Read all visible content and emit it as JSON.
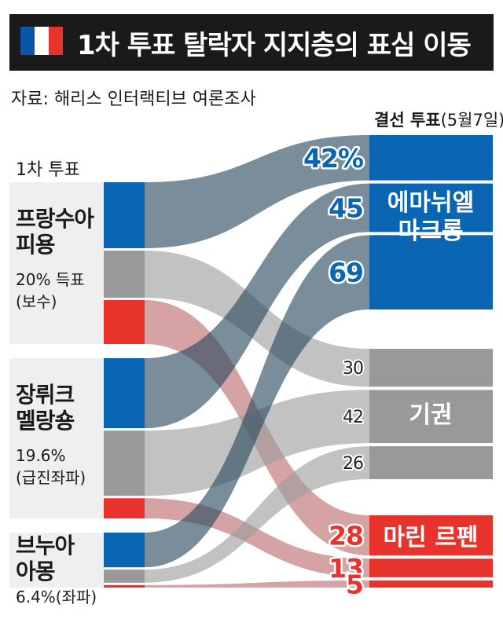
{
  "title": "1차 투표 탈락자 지지층의 표심 이동",
  "source": "자료: 해리스 인터랙티브 여론조사",
  "colors": {
    "macron": "#0a66b2",
    "abstain": "#999999",
    "lepen": "#e8322c",
    "flag_blue": "#0a55a6",
    "flag_white": "#ffffff",
    "flag_red": "#e8322c"
  },
  "headers": {
    "first_round": "1차 투표",
    "final_round": "결선 투표",
    "final_round_date": "(5월7일)"
  },
  "first_round": [
    {
      "name_line1": "프랑수아",
      "name_line2": "피용",
      "detail_line1": "20% 득표",
      "detail_line2": "(보수)"
    },
    {
      "name_line1": "장뤼크",
      "name_line2": "멜랑숑",
      "detail_line1": "19.6%",
      "detail_line2": "(급진좌파)"
    },
    {
      "name_line1": "브누아",
      "name_line2": "아몽",
      "detail_line1": "6.4%(좌파)"
    }
  ],
  "final_round": [
    {
      "label_line1": "에마뉘엘",
      "label_line2": "마크롱"
    },
    {
      "label_line1": "기권"
    },
    {
      "label_line1": "마린 르펜"
    }
  ],
  "chart_data": {
    "type": "sankey",
    "sources": [
      "프랑수아 피용",
      "장뤼크 멜랑숑",
      "브누아 아몽"
    ],
    "targets": [
      "에마뉘엘 마크롱",
      "기권",
      "마린 르펜"
    ],
    "links": [
      {
        "source": "프랑수아 피용",
        "target": "에마뉘엘 마크롱",
        "value": 42,
        "label": "42%"
      },
      {
        "source": "프랑수아 피용",
        "target": "기권",
        "value": 30,
        "label": "30"
      },
      {
        "source": "프랑수아 피용",
        "target": "마린 르펜",
        "value": 28,
        "label": "28"
      },
      {
        "source": "장뤼크 멜랑숑",
        "target": "에마뉘엘 마크롱",
        "value": 45,
        "label": "45"
      },
      {
        "source": "장뤼크 멜랑숑",
        "target": "기권",
        "value": 42,
        "label": "42"
      },
      {
        "source": "장뤼크 멜랑숑",
        "target": "마린 르펜",
        "value": 13,
        "label": "13"
      },
      {
        "source": "브누아 아몽",
        "target": "에마뉘엘 마크롱",
        "value": 69,
        "label": "69"
      },
      {
        "source": "브누아 아몽",
        "target": "기권",
        "value": 26,
        "label": "26"
      },
      {
        "source": "브누아 아몽",
        "target": "마린 르펜",
        "value": 5,
        "label": "5"
      }
    ]
  }
}
